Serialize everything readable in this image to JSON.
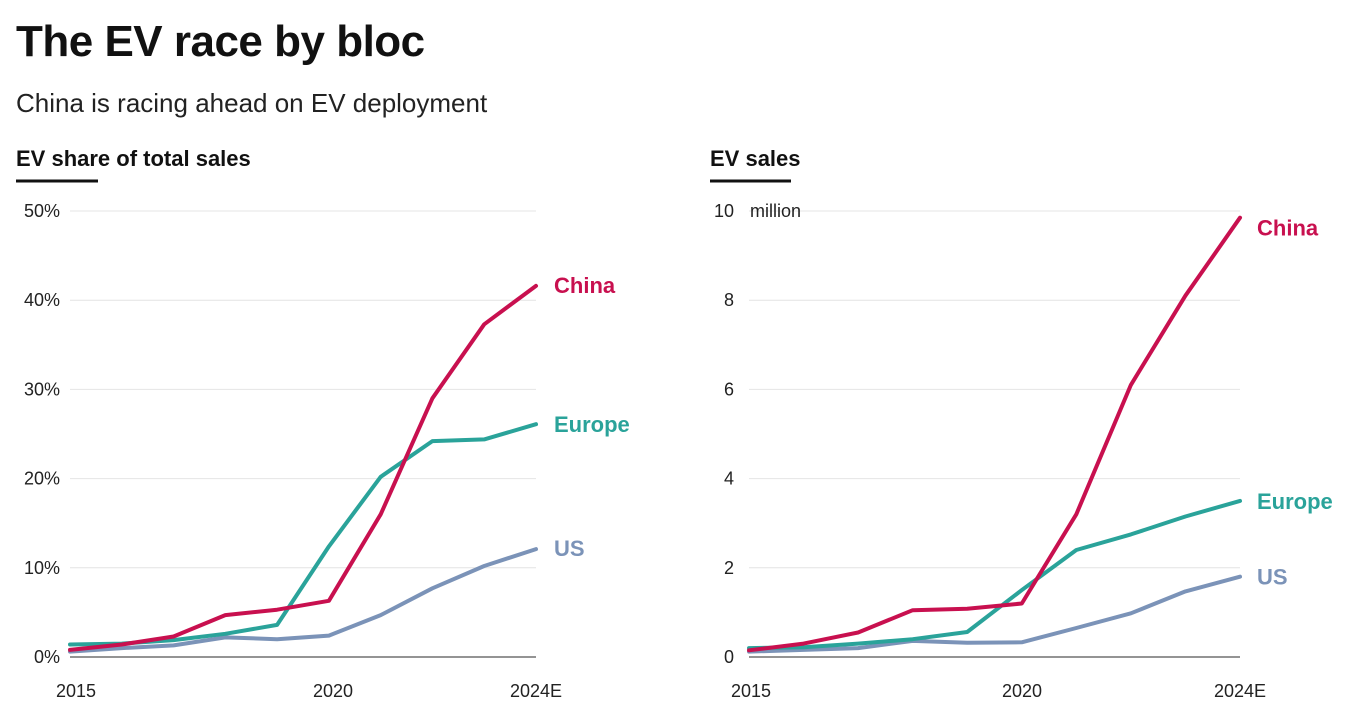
{
  "header": {
    "title": "The EV race by bloc",
    "subtitle": "China is racing ahead on EV deployment"
  },
  "colors": {
    "China": "#c8104f",
    "Europe": "#2aa39a",
    "US": "#7b93b8"
  },
  "chart_data": [
    {
      "type": "line",
      "title": "EV share of total sales",
      "xlabel": "",
      "ylabel": "",
      "x": [
        "2015",
        "2016",
        "2017",
        "2018",
        "2019",
        "2020",
        "2021",
        "2022",
        "2023",
        "2024E"
      ],
      "x_ticks": [
        "2015",
        "2020",
        "2024E"
      ],
      "y_ticks": [
        "0%",
        "10%",
        "20%",
        "30%",
        "40%",
        "50%"
      ],
      "y_tick_values": [
        0,
        10,
        20,
        30,
        40,
        50
      ],
      "ylim": [
        0,
        50
      ],
      "grid": true,
      "legend": "direct labels at line ends",
      "series": [
        {
          "name": "China",
          "values": [
            0.8,
            1.4,
            2.3,
            4.7,
            5.3,
            6.3,
            16,
            29,
            37.3,
            41.6
          ]
        },
        {
          "name": "Europe",
          "values": [
            1.4,
            1.5,
            1.9,
            2.6,
            3.6,
            12.4,
            20.2,
            24.2,
            24.4,
            26.1
          ]
        },
        {
          "name": "US",
          "values": [
            0.6,
            1.0,
            1.3,
            2.2,
            2.0,
            2.4,
            4.7,
            7.7,
            10.2,
            12.1
          ]
        }
      ]
    },
    {
      "type": "line",
      "title": "EV sales",
      "xlabel": "",
      "ylabel": "",
      "unit": "million",
      "x": [
        "2015",
        "2016",
        "2017",
        "2018",
        "2019",
        "2020",
        "2021",
        "2022",
        "2023",
        "2024E"
      ],
      "x_ticks": [
        "2015",
        "2020",
        "2024E"
      ],
      "y_ticks": [
        "0",
        "2",
        "4",
        "6",
        "8",
        "10"
      ],
      "y_tick_values": [
        0,
        2,
        4,
        6,
        8,
        10
      ],
      "ylim": [
        0,
        10
      ],
      "grid": true,
      "legend": "direct labels at line ends",
      "series": [
        {
          "name": "China",
          "values": [
            0.15,
            0.3,
            0.55,
            1.05,
            1.08,
            1.2,
            3.2,
            6.1,
            8.1,
            9.85
          ]
        },
        {
          "name": "Europe",
          "values": [
            0.2,
            0.22,
            0.3,
            0.4,
            0.56,
            1.5,
            2.4,
            2.75,
            3.15,
            3.5
          ]
        },
        {
          "name": "US",
          "values": [
            0.12,
            0.16,
            0.2,
            0.36,
            0.32,
            0.33,
            0.65,
            0.98,
            1.47,
            1.8
          ]
        }
      ]
    }
  ]
}
